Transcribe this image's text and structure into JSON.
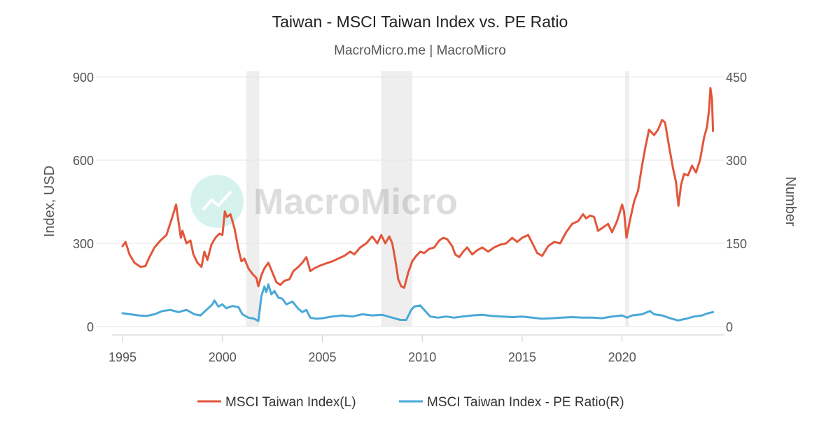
{
  "chart_data": {
    "type": "line",
    "title": "Taiwan - MSCI Taiwan Index vs. PE Ratio",
    "subtitle": "MacroMicro.me | MacroMicro",
    "watermark": "MacroMicro",
    "xlim": [
      1995,
      2024.6
    ],
    "x_ticks": [
      1995,
      2000,
      2005,
      2010,
      2015,
      2020
    ],
    "x_tick_labels": [
      "1995",
      "2000",
      "2005",
      "2010",
      "2015",
      "2020"
    ],
    "ylabel_left": "Index, USD",
    "ylabel_right": "Number",
    "ylim_left": [
      0,
      900
    ],
    "ylim_right": [
      0,
      450
    ],
    "y_ticks_left": [
      0,
      300,
      600,
      900
    ],
    "y_tick_labels_left": [
      "0",
      "300",
      "600",
      "900"
    ],
    "y_ticks_right": [
      0,
      150,
      300,
      450
    ],
    "y_tick_labels_right": [
      "0",
      "150",
      "300",
      "450"
    ],
    "grid": "horizontal",
    "legend_position": "bottom",
    "recession_bands": [
      [
        2001.2,
        2001.85
      ],
      [
        2007.95,
        2009.5
      ],
      [
        2020.15,
        2020.35
      ]
    ],
    "series": [
      {
        "name": "MSCI Taiwan Index(L)",
        "axis": "left",
        "color": "#e2563b",
        "points": [
          [
            1995.0,
            290
          ],
          [
            1995.15,
            305
          ],
          [
            1995.35,
            260
          ],
          [
            1995.6,
            230
          ],
          [
            1995.9,
            215
          ],
          [
            1996.15,
            218
          ],
          [
            1996.35,
            250
          ],
          [
            1996.6,
            285
          ],
          [
            1996.9,
            310
          ],
          [
            1997.2,
            330
          ],
          [
            1997.45,
            385
          ],
          [
            1997.6,
            420
          ],
          [
            1997.68,
            440
          ],
          [
            1997.8,
            380
          ],
          [
            1997.92,
            320
          ],
          [
            1998.0,
            345
          ],
          [
            1998.2,
            300
          ],
          [
            1998.4,
            310
          ],
          [
            1998.55,
            260
          ],
          [
            1998.75,
            230
          ],
          [
            1998.95,
            215
          ],
          [
            1999.1,
            270
          ],
          [
            1999.25,
            240
          ],
          [
            1999.45,
            295
          ],
          [
            1999.65,
            320
          ],
          [
            1999.85,
            335
          ],
          [
            2000.0,
            330
          ],
          [
            2000.12,
            415
          ],
          [
            2000.22,
            395
          ],
          [
            2000.4,
            405
          ],
          [
            2000.6,
            355
          ],
          [
            2000.8,
            280
          ],
          [
            2000.95,
            235
          ],
          [
            2001.1,
            245
          ],
          [
            2001.3,
            210
          ],
          [
            2001.5,
            190
          ],
          [
            2001.7,
            175
          ],
          [
            2001.8,
            145
          ],
          [
            2001.95,
            185
          ],
          [
            2002.1,
            210
          ],
          [
            2002.3,
            230
          ],
          [
            2002.5,
            195
          ],
          [
            2002.7,
            160
          ],
          [
            2002.9,
            150
          ],
          [
            2003.1,
            165
          ],
          [
            2003.35,
            170
          ],
          [
            2003.55,
            200
          ],
          [
            2003.8,
            215
          ],
          [
            2004.0,
            230
          ],
          [
            2004.2,
            250
          ],
          [
            2004.4,
            200
          ],
          [
            2004.6,
            210
          ],
          [
            2004.9,
            220
          ],
          [
            2005.2,
            228
          ],
          [
            2005.5,
            235
          ],
          [
            2005.8,
            245
          ],
          [
            2006.1,
            255
          ],
          [
            2006.4,
            270
          ],
          [
            2006.6,
            260
          ],
          [
            2006.9,
            285
          ],
          [
            2007.2,
            300
          ],
          [
            2007.5,
            325
          ],
          [
            2007.75,
            300
          ],
          [
            2007.95,
            330
          ],
          [
            2008.15,
            300
          ],
          [
            2008.35,
            325
          ],
          [
            2008.5,
            300
          ],
          [
            2008.65,
            240
          ],
          [
            2008.8,
            170
          ],
          [
            2008.95,
            145
          ],
          [
            2009.1,
            140
          ],
          [
            2009.3,
            195
          ],
          [
            2009.5,
            235
          ],
          [
            2009.7,
            255
          ],
          [
            2009.9,
            270
          ],
          [
            2010.1,
            265
          ],
          [
            2010.35,
            280
          ],
          [
            2010.6,
            285
          ],
          [
            2010.85,
            310
          ],
          [
            2011.05,
            320
          ],
          [
            2011.25,
            315
          ],
          [
            2011.5,
            290
          ],
          [
            2011.65,
            260
          ],
          [
            2011.85,
            250
          ],
          [
            2012.05,
            270
          ],
          [
            2012.25,
            285
          ],
          [
            2012.5,
            260
          ],
          [
            2012.75,
            275
          ],
          [
            2013.0,
            285
          ],
          [
            2013.3,
            270
          ],
          [
            2013.6,
            285
          ],
          [
            2013.9,
            295
          ],
          [
            2014.2,
            300
          ],
          [
            2014.5,
            320
          ],
          [
            2014.75,
            305
          ],
          [
            2015.0,
            320
          ],
          [
            2015.3,
            330
          ],
          [
            2015.55,
            295
          ],
          [
            2015.75,
            265
          ],
          [
            2016.0,
            255
          ],
          [
            2016.3,
            290
          ],
          [
            2016.6,
            305
          ],
          [
            2016.9,
            300
          ],
          [
            2017.2,
            340
          ],
          [
            2017.5,
            370
          ],
          [
            2017.8,
            380
          ],
          [
            2018.05,
            405
          ],
          [
            2018.2,
            390
          ],
          [
            2018.4,
            400
          ],
          [
            2018.6,
            395
          ],
          [
            2018.8,
            345
          ],
          [
            2019.0,
            355
          ],
          [
            2019.3,
            370
          ],
          [
            2019.5,
            340
          ],
          [
            2019.75,
            380
          ],
          [
            2020.0,
            440
          ],
          [
            2020.1,
            415
          ],
          [
            2020.22,
            320
          ],
          [
            2020.4,
            385
          ],
          [
            2020.6,
            450
          ],
          [
            2020.8,
            490
          ],
          [
            2021.0,
            580
          ],
          [
            2021.15,
            640
          ],
          [
            2021.35,
            710
          ],
          [
            2021.6,
            690
          ],
          [
            2021.8,
            710
          ],
          [
            2022.0,
            745
          ],
          [
            2022.15,
            735
          ],
          [
            2022.35,
            650
          ],
          [
            2022.55,
            570
          ],
          [
            2022.7,
            520
          ],
          [
            2022.82,
            435
          ],
          [
            2022.95,
            510
          ],
          [
            2023.1,
            550
          ],
          [
            2023.3,
            545
          ],
          [
            2023.5,
            580
          ],
          [
            2023.7,
            555
          ],
          [
            2023.9,
            600
          ],
          [
            2024.1,
            680
          ],
          [
            2024.25,
            720
          ],
          [
            2024.35,
            780
          ],
          [
            2024.42,
            860
          ],
          [
            2024.5,
            820
          ],
          [
            2024.55,
            705
          ]
        ]
      },
      {
        "name": "MSCI Taiwan Index - PE Ratio(R)",
        "axis": "right",
        "color": "#4aa8d8",
        "points": [
          [
            1995.0,
            24
          ],
          [
            1995.4,
            22
          ],
          [
            1995.8,
            20
          ],
          [
            1996.2,
            19
          ],
          [
            1996.6,
            22
          ],
          [
            1997.0,
            28
          ],
          [
            1997.4,
            30
          ],
          [
            1997.8,
            26
          ],
          [
            1998.2,
            30
          ],
          [
            1998.6,
            22
          ],
          [
            1998.9,
            20
          ],
          [
            1999.2,
            30
          ],
          [
            1999.5,
            40
          ],
          [
            1999.6,
            47
          ],
          [
            1999.8,
            36
          ],
          [
            2000.0,
            40
          ],
          [
            2000.2,
            33
          ],
          [
            2000.5,
            37
          ],
          [
            2000.8,
            35
          ],
          [
            2001.0,
            22
          ],
          [
            2001.3,
            16
          ],
          [
            2001.6,
            14
          ],
          [
            2001.8,
            10
          ],
          [
            2001.95,
            55
          ],
          [
            2002.1,
            72
          ],
          [
            2002.2,
            62
          ],
          [
            2002.3,
            76
          ],
          [
            2002.45,
            58
          ],
          [
            2002.6,
            64
          ],
          [
            2002.8,
            52
          ],
          [
            2003.0,
            50
          ],
          [
            2003.2,
            40
          ],
          [
            2003.5,
            45
          ],
          [
            2003.8,
            32
          ],
          [
            2004.0,
            26
          ],
          [
            2004.2,
            30
          ],
          [
            2004.4,
            16
          ],
          [
            2004.7,
            14
          ],
          [
            2005.0,
            15
          ],
          [
            2005.5,
            18
          ],
          [
            2006.0,
            20
          ],
          [
            2006.5,
            18
          ],
          [
            2007.0,
            22
          ],
          [
            2007.5,
            20
          ],
          [
            2008.0,
            21
          ],
          [
            2008.5,
            16
          ],
          [
            2008.9,
            12
          ],
          [
            2009.2,
            12
          ],
          [
            2009.45,
            30
          ],
          [
            2009.6,
            36
          ],
          [
            2009.9,
            38
          ],
          [
            2010.1,
            30
          ],
          [
            2010.4,
            18
          ],
          [
            2010.8,
            16
          ],
          [
            2011.2,
            18
          ],
          [
            2011.6,
            16
          ],
          [
            2012.0,
            18
          ],
          [
            2012.5,
            20
          ],
          [
            2013.0,
            21
          ],
          [
            2013.5,
            19
          ],
          [
            2014.0,
            18
          ],
          [
            2014.5,
            17
          ],
          [
            2015.0,
            18
          ],
          [
            2015.5,
            16
          ],
          [
            2016.0,
            14
          ],
          [
            2016.5,
            15
          ],
          [
            2017.0,
            16
          ],
          [
            2017.5,
            17
          ],
          [
            2018.0,
            16
          ],
          [
            2018.5,
            16
          ],
          [
            2019.0,
            15
          ],
          [
            2019.5,
            18
          ],
          [
            2020.0,
            20
          ],
          [
            2020.25,
            16
          ],
          [
            2020.5,
            20
          ],
          [
            2021.0,
            22
          ],
          [
            2021.4,
            28
          ],
          [
            2021.6,
            22
          ],
          [
            2022.0,
            20
          ],
          [
            2022.4,
            15
          ],
          [
            2022.8,
            11
          ],
          [
            2023.2,
            14
          ],
          [
            2023.6,
            18
          ],
          [
            2024.0,
            20
          ],
          [
            2024.3,
            24
          ],
          [
            2024.55,
            26
          ]
        ]
      }
    ]
  }
}
